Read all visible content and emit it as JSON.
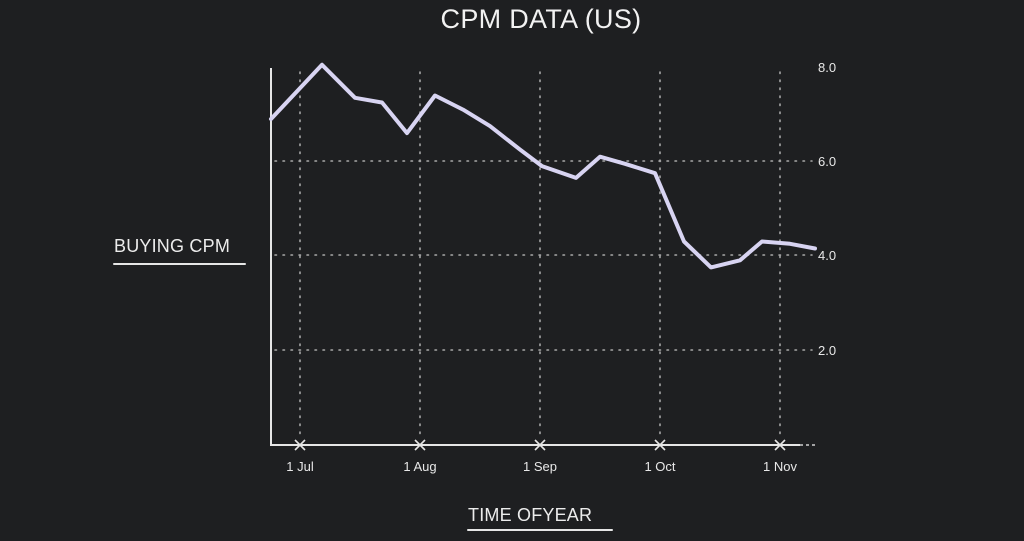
{
  "chart_data": {
    "type": "line",
    "title": "CPM DATA (US)",
    "xlabel": "TIME OFYEAR",
    "ylabel": "BUYING CPM",
    "ylim": [
      0,
      8.0
    ],
    "yticks": [
      2.0,
      4.0,
      6.0,
      8.0
    ],
    "ytick_labels": [
      "2.0",
      "4.0",
      "6.0",
      "8.0"
    ],
    "xtick_labels": [
      "1 Jul",
      "1 Aug",
      "1 Sep",
      "1 Oct",
      "1 Nov"
    ],
    "grid": "dotted, vertical at month ticks, horizontal at 2.0/4.0/6.0",
    "y_axis_position": "right",
    "legend": null,
    "series": [
      {
        "name": "Buying CPM",
        "color": "#d8d4f2",
        "x": [
          "~24 Jun",
          "~7 Jul",
          "~15 Jul",
          "~22 Jul",
          "~28 Jul",
          "~4 Aug",
          "~11 Aug",
          "~18 Aug",
          "~26 Aug",
          "~1 Sep",
          "~9 Sep",
          "~15 Sep",
          "~22 Sep",
          "~29 Sep",
          "~6 Oct",
          "~13 Oct",
          "~20 Oct",
          "~26 Oct",
          "~2 Nov",
          "~8 Nov"
        ],
        "values": [
          6.9,
          8.05,
          7.35,
          7.25,
          6.6,
          7.4,
          7.1,
          6.75,
          6.25,
          5.9,
          5.65,
          6.1,
          5.95,
          5.75,
          4.3,
          3.75,
          3.9,
          4.3,
          4.25,
          4.15
        ]
      }
    ]
  },
  "labels": {
    "title": "CPM DATA (US)",
    "ylabel": "BUYING CPM",
    "xlabel": "TIME OFYEAR",
    "yticks": [
      "8.0",
      "6.0",
      "4.0",
      "2.0"
    ],
    "xticks": [
      "1 Jul",
      "1 Aug",
      "1 Sep",
      "1 Oct",
      "1 Nov"
    ]
  },
  "colors": {
    "background": "#1e1f21",
    "line": "#d8d4f2",
    "axis": "#e6e6e6",
    "grid": "#a8a8a8",
    "text": "#ececec"
  }
}
